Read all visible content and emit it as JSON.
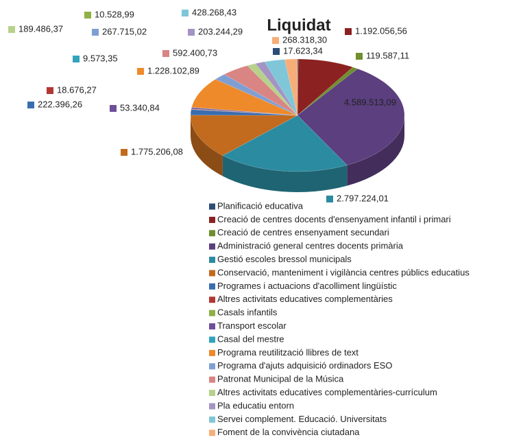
{
  "chart_data": {
    "type": "pie3d",
    "title": "Liquidat",
    "categories": [
      "Planificació educativa",
      "Creació de centres docents d'ensenyament infantil i primari",
      "Creació de centres ensenyament secundari",
      "Administració general centres docents primària",
      "Gestió escoles bressol municipals",
      "Conservació, manteniment i vigilància centres públics educatius",
      "Programes i actuacions d'acolliment lingüístic",
      "Altres activitats educatives complementàries",
      "Casals infantils",
      "Transport escolar",
      "Casal del mestre",
      "Programa reutilització llibres de text",
      "Programa d'ajuts adquisició ordinadors ESO",
      "Patronat Municipal de la Música",
      "Altres activitats educatives complementàries-currículum",
      "Pla educatiu entorn",
      "Servei complement. Educació. Universitats",
      "Foment de la convivència ciutadana"
    ],
    "values": [
      17623.34,
      1192056.56,
      119587.11,
      4589513.09,
      2797224.01,
      1775206.08,
      222396.26,
      18676.27,
      10528.99,
      53340.84,
      9573.35,
      1228102.89,
      267715.02,
      592400.73,
      189486.37,
      203244.29,
      428268.43,
      268318.3
    ],
    "value_labels": [
      "17.623,34",
      "1.192.056,56",
      "119.587,11",
      "4.589.513,09",
      "2.797.224,01",
      "1.775.206,08",
      "222.396,26",
      "18.676,27",
      "10.528,99",
      "53.340,84",
      "9.573,35",
      "1.228.102,89",
      "267.715,02",
      "592.400,73",
      "189.486,37",
      "203.244,29",
      "428.268,43",
      "268.318,30"
    ],
    "colors": [
      "#2c4d75",
      "#8b2120",
      "#6f8f2e",
      "#5b3f7f",
      "#2b8ba0",
      "#c26a1d",
      "#3a6db0",
      "#b33634",
      "#8fb044",
      "#6e4f9a",
      "#31a3bd",
      "#ee8a2a",
      "#7f9fd3",
      "#d98583",
      "#b6d28a",
      "#a394c4",
      "#7fc6d8",
      "#f7ad78"
    ],
    "legend": "bottom"
  }
}
